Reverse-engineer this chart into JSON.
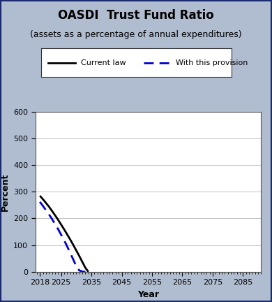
{
  "title": "OASDI  Trust Fund Ratio",
  "subtitle": "(assets as a percentage of annual expenditures)",
  "xlabel": "Year",
  "ylabel": "Percent",
  "background_color": "#b0bdd0",
  "plot_bg_color": "#ffffff",
  "border_color": "#1a2a6e",
  "ylim": [
    0,
    600
  ],
  "yticks": [
    0,
    100,
    200,
    300,
    400,
    500,
    600
  ],
  "xlim": [
    2016.5,
    2091
  ],
  "xticks": [
    2018,
    2025,
    2035,
    2045,
    2055,
    2065,
    2075,
    2085
  ],
  "current_law": {
    "x": [
      2018,
      2019,
      2020,
      2021,
      2022,
      2023,
      2024,
      2025,
      2026,
      2027,
      2028,
      2029,
      2030,
      2031,
      2032,
      2033,
      2034
    ],
    "y": [
      285,
      272,
      258,
      244,
      228,
      212,
      195,
      177,
      159,
      140,
      121,
      101,
      80,
      59,
      37,
      15,
      0
    ],
    "color": "#000000",
    "linewidth": 2.0,
    "label": "Current law"
  },
  "provision": {
    "x": [
      2018,
      2019,
      2020,
      2021,
      2022,
      2023,
      2024,
      2025,
      2026,
      2027,
      2028,
      2029,
      2030,
      2031,
      2032,
      2033
    ],
    "y": [
      262,
      247,
      231,
      215,
      198,
      179,
      160,
      139,
      118,
      95,
      71,
      46,
      21,
      5,
      1,
      0
    ],
    "color": "#0000cc",
    "linewidth": 2.0,
    "label": "With this provision"
  },
  "title_fontsize": 12,
  "subtitle_fontsize": 9,
  "axis_label_fontsize": 9,
  "tick_fontsize": 8,
  "legend_fontsize": 8
}
